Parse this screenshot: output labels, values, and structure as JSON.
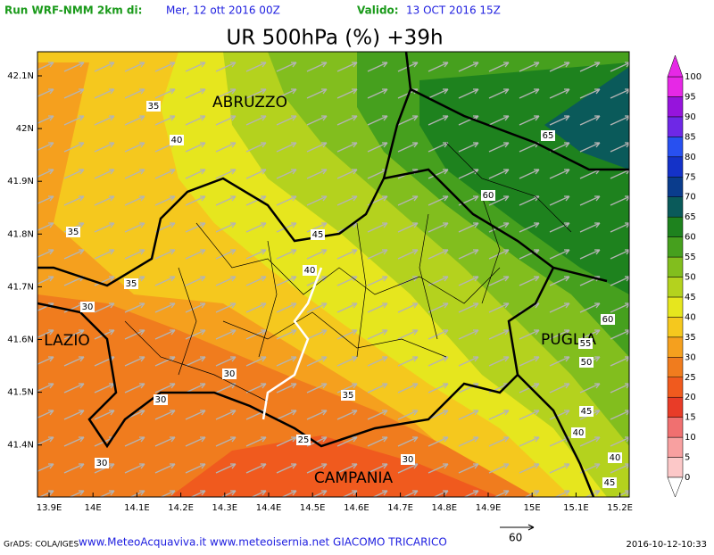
{
  "header": {
    "run_label": "Run WRF-NMM 2km di:",
    "run_date": "Mer, 12 ott 2016 00Z",
    "valid_label": "Valido:",
    "valid_date": "13 OCT 2016 15Z"
  },
  "title": "UR 500hPa (%) +39h",
  "lat_labels": [
    "42.1N",
    "42N",
    "41.9N",
    "41.8N",
    "41.7N",
    "41.6N",
    "41.5N",
    "41.4N"
  ],
  "lon_labels": [
    "13.9E",
    "14E",
    "14.1E",
    "14.2E",
    "14.3E",
    "14.4E",
    "14.5E",
    "14.6E",
    "14.7E",
    "14.8E",
    "14.9E",
    "15E",
    "15.1E",
    "15.2E"
  ],
  "regions": [
    "ABRUZZO",
    "LAZIO",
    "PUGLIA",
    "CAMPANIA"
  ],
  "contour_labels": [
    35,
    40,
    35,
    35,
    30,
    45,
    40,
    30,
    30,
    35,
    25,
    30,
    30,
    65,
    60,
    60,
    55,
    50,
    45,
    40,
    40,
    45
  ],
  "colorbar": {
    "levels": [
      0,
      5,
      10,
      15,
      20,
      25,
      30,
      35,
      40,
      45,
      50,
      55,
      60,
      65,
      70,
      75,
      80,
      85,
      90,
      95,
      100
    ],
    "colors": [
      "#fcc8c8",
      "#f8a0a0",
      "#f07070",
      "#e83c28",
      "#f05a1e",
      "#f07c1e",
      "#f5a01e",
      "#f5c81e",
      "#e6e61e",
      "#b4d21e",
      "#82be1e",
      "#46a01e",
      "#1e821e",
      "#0a5a5a",
      "#0a3c8c",
      "#1432c8",
      "#2850f0",
      "#6e28e6",
      "#9614dc",
      "#e628e6"
    ]
  },
  "footer": {
    "grads": "GrADS: COLA/IGES",
    "credits": "www.MeteoAcquaviva.it www.meteoisernia.net GIACOMO TRICARICO",
    "arrow_scale": "60",
    "timestamp": "2016-10-12-10:33"
  }
}
